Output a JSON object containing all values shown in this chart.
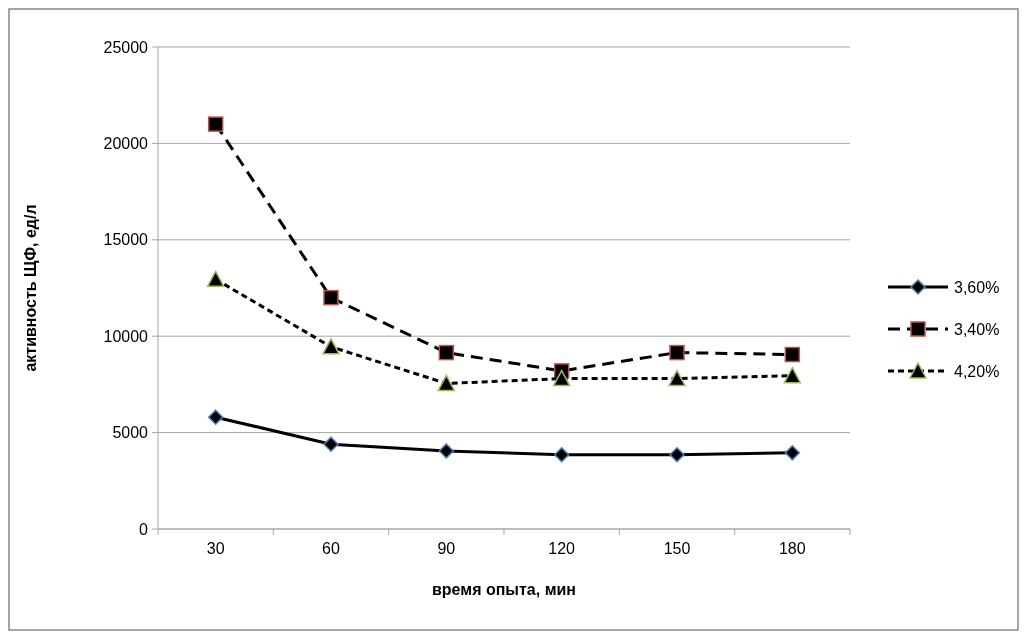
{
  "chart_data": {
    "type": "line",
    "xlabel": "время опыта, мин",
    "ylabel": "активность ЩФ, ед/л",
    "categories": [
      "30",
      "60",
      "90",
      "120",
      "150",
      "180"
    ],
    "series": [
      {
        "name": "3,60%",
        "color": "#000000",
        "marker": "diamond",
        "line_style": "solid",
        "values": [
          5800,
          4400,
          4050,
          3850,
          3850,
          3950
        ]
      },
      {
        "name": "3,40%",
        "color": "#000000",
        "marker": "square",
        "line_style": "dashed",
        "values": [
          21000,
          12000,
          9150,
          8200,
          9150,
          9050
        ]
      },
      {
        "name": "4,20%",
        "color": "#000000",
        "marker": "triangle",
        "line_style": "dotted",
        "values": [
          12950,
          9450,
          7550,
          7800,
          7800,
          7950
        ]
      }
    ],
    "ylim": [
      0,
      25000
    ],
    "yticks": [
      0,
      5000,
      10000,
      15000,
      20000,
      25000
    ],
    "grid": "y",
    "legend": "right"
  }
}
